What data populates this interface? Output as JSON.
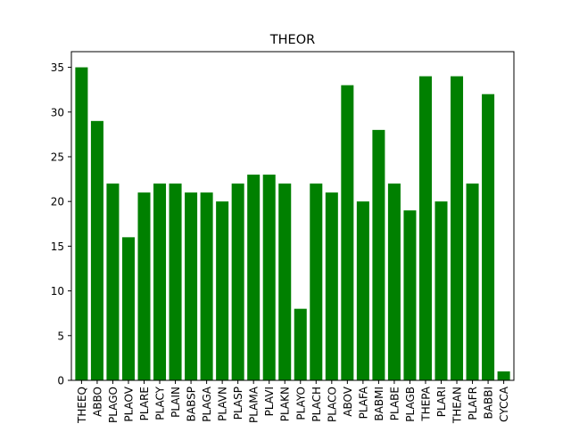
{
  "chart_data": {
    "type": "bar",
    "title": "THEOR",
    "xlabel": "",
    "ylabel": "",
    "categories": [
      "THEEQ",
      "ABBO",
      "PLAGO",
      "PLAOV",
      "PLARE",
      "PLACY",
      "PLAIN",
      "BABSP",
      "PLAGA",
      "PLAVN",
      "PLASP",
      "PLAMA",
      "PLAVI",
      "PLAKN",
      "PLAYO",
      "PLACH",
      "PLACO",
      "ABOV",
      "PLAFA",
      "BABMI",
      "PLABE",
      "PLAGB",
      "THEPA",
      "PLARI",
      "THEAN",
      "PLAFR",
      "BABBI",
      "CYCCA"
    ],
    "values": [
      35,
      29,
      22,
      16,
      21,
      22,
      22,
      21,
      21,
      20,
      22,
      23,
      23,
      22,
      8,
      22,
      21,
      33,
      20,
      28,
      22,
      19,
      34,
      20,
      34,
      22,
      32,
      1
    ],
    "ylim": [
      0,
      36.75
    ],
    "yticks": [
      0,
      5,
      10,
      15,
      20,
      25,
      30,
      35
    ],
    "bar_color": "#008000",
    "grid": false,
    "legend": "none"
  }
}
